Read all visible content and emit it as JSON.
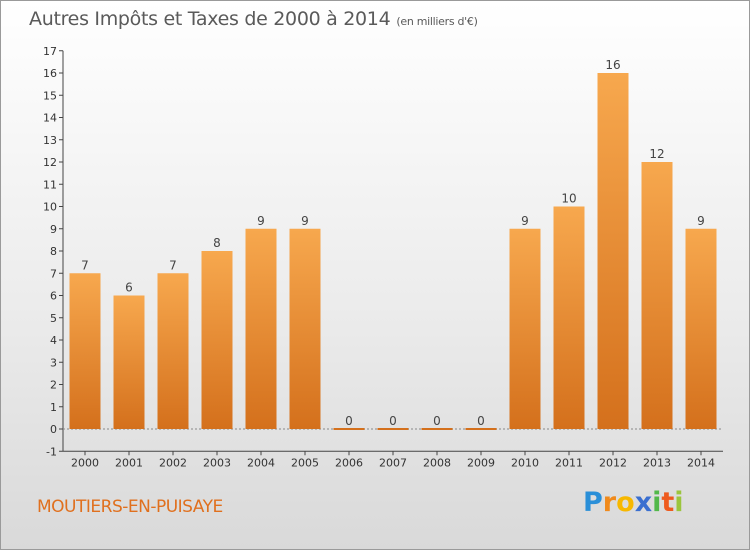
{
  "title": "Autres Impôts et Taxes de 2000 à 2014",
  "unit": "(en milliers d'€)",
  "place": "MOUTIERS-EN-PUISAYE",
  "logo": {
    "p": "P",
    "r": "r",
    "o": "o",
    "x": "x",
    "i1": "i",
    "t": "t",
    "i2": "i"
  },
  "colors": {
    "bar_top": "#f7a84e",
    "bar_bottom": "#d4701c",
    "place": "#e0701e"
  },
  "chart_data": {
    "type": "bar",
    "title": "Autres Impôts et Taxes de 2000 à 2014",
    "xlabel": "",
    "ylabel": "",
    "categories": [
      "2000",
      "2001",
      "2002",
      "2003",
      "2004",
      "2005",
      "2006",
      "2007",
      "2008",
      "2009",
      "2010",
      "2011",
      "2012",
      "2013",
      "2014"
    ],
    "values": [
      7,
      6,
      7,
      8,
      9,
      9,
      0,
      0,
      0,
      0,
      9,
      10,
      16,
      12,
      9
    ],
    "data_labels": [
      "7",
      "6",
      "7",
      "8",
      "9",
      "9",
      "0",
      "0",
      "0",
      "0",
      "9",
      "10",
      "16",
      "12",
      "9"
    ],
    "ylim": [
      -1,
      17
    ],
    "yticks": [
      -1,
      0,
      1,
      2,
      3,
      4,
      5,
      6,
      7,
      8,
      9,
      10,
      11,
      12,
      13,
      14,
      15,
      16,
      17
    ],
    "grid": false,
    "legend": "none"
  }
}
